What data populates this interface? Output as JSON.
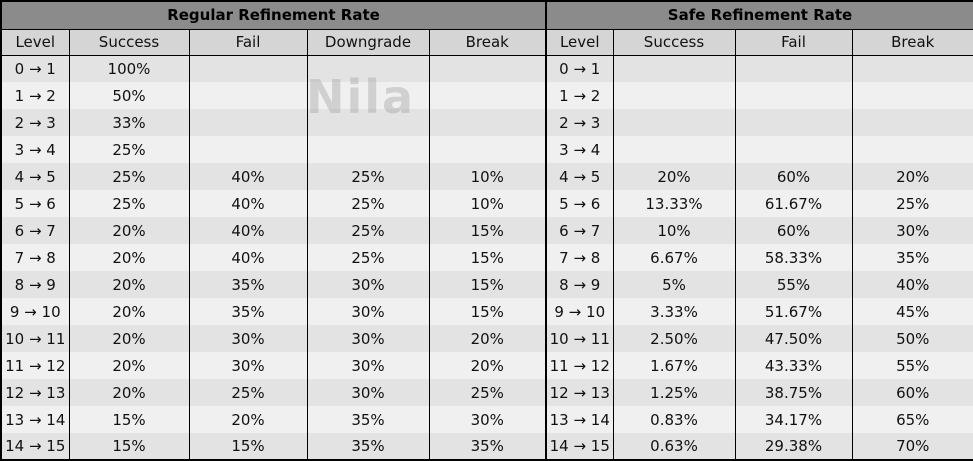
{
  "watermark": "Nila",
  "chart_data": {
    "type": "table",
    "tables": [
      {
        "title": "Regular Refinement Rate",
        "columns": [
          "Level",
          "Success",
          "Fail",
          "Downgrade",
          "Break"
        ],
        "rows": [
          [
            "0 → 1",
            "100%",
            "",
            "",
            ""
          ],
          [
            "1 → 2",
            "50%",
            "",
            "",
            ""
          ],
          [
            "2 → 3",
            "33%",
            "",
            "",
            ""
          ],
          [
            "3 → 4",
            "25%",
            "",
            "",
            ""
          ],
          [
            "4 → 5",
            "25%",
            "40%",
            "25%",
            "10%"
          ],
          [
            "5 → 6",
            "25%",
            "40%",
            "25%",
            "10%"
          ],
          [
            "6 → 7",
            "20%",
            "40%",
            "25%",
            "15%"
          ],
          [
            "7 → 8",
            "20%",
            "40%",
            "25%",
            "15%"
          ],
          [
            "8 → 9",
            "20%",
            "35%",
            "30%",
            "15%"
          ],
          [
            "9 → 10",
            "20%",
            "35%",
            "30%",
            "15%"
          ],
          [
            "10 → 11",
            "20%",
            "30%",
            "30%",
            "20%"
          ],
          [
            "11 → 12",
            "20%",
            "30%",
            "30%",
            "20%"
          ],
          [
            "12 → 13",
            "20%",
            "25%",
            "30%",
            "25%"
          ],
          [
            "13 → 14",
            "15%",
            "20%",
            "35%",
            "30%"
          ],
          [
            "14 → 15",
            "15%",
            "15%",
            "35%",
            "35%"
          ]
        ]
      },
      {
        "title": "Safe Refinement Rate",
        "columns": [
          "Level",
          "Success",
          "Fail",
          "Break"
        ],
        "rows": [
          [
            "0 → 1",
            "",
            "",
            ""
          ],
          [
            "1 → 2",
            "",
            "",
            ""
          ],
          [
            "2 → 3",
            "",
            "",
            ""
          ],
          [
            "3 → 4",
            "",
            "",
            ""
          ],
          [
            "4 → 5",
            "20%",
            "60%",
            "20%"
          ],
          [
            "5 → 6",
            "13.33%",
            "61.67%",
            "25%"
          ],
          [
            "6 → 7",
            "10%",
            "60%",
            "30%"
          ],
          [
            "7 → 8",
            "6.67%",
            "58.33%",
            "35%"
          ],
          [
            "8 → 9",
            "5%",
            "55%",
            "40%"
          ],
          [
            "9 → 10",
            "3.33%",
            "51.67%",
            "45%"
          ],
          [
            "10 → 11",
            "2.50%",
            "47.50%",
            "50%"
          ],
          [
            "11 → 12",
            "1.67%",
            "43.33%",
            "55%"
          ],
          [
            "12 → 13",
            "1.25%",
            "38.75%",
            "60%"
          ],
          [
            "13 → 14",
            "0.83%",
            "34.17%",
            "65%"
          ],
          [
            "14 → 15",
            "0.63%",
            "29.38%",
            "70%"
          ]
        ]
      }
    ]
  }
}
